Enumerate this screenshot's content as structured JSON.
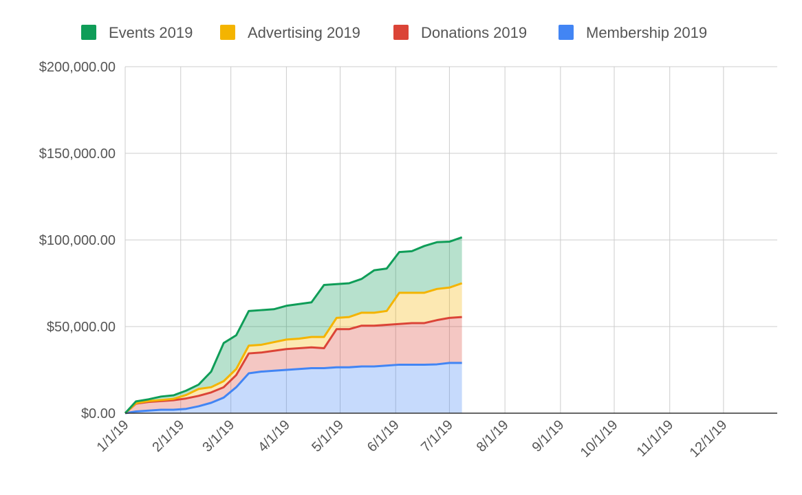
{
  "chart_data": {
    "type": "area",
    "stacked": true,
    "title": "",
    "xlabel": "",
    "ylabel": "",
    "ylim": [
      0,
      200000
    ],
    "xlim": [
      "2019-01-01",
      "2019-12-31"
    ],
    "grid": true,
    "legend_position": "top",
    "y_ticks": [
      {
        "value": 0,
        "label": "$0.00"
      },
      {
        "value": 50000,
        "label": "$50,000.00"
      },
      {
        "value": 100000,
        "label": "$100,000.00"
      },
      {
        "value": 150000,
        "label": "$150,000.00"
      },
      {
        "value": 200000,
        "label": "$200,000.00"
      }
    ],
    "x_ticks": [
      {
        "date": "2019-01-01",
        "label": "1/1/19"
      },
      {
        "date": "2019-02-01",
        "label": "2/1/19"
      },
      {
        "date": "2019-03-01",
        "label": "3/1/19"
      },
      {
        "date": "2019-04-01",
        "label": "4/1/19"
      },
      {
        "date": "2019-05-01",
        "label": "5/1/19"
      },
      {
        "date": "2019-06-01",
        "label": "6/1/19"
      },
      {
        "date": "2019-07-01",
        "label": "7/1/19"
      },
      {
        "date": "2019-08-01",
        "label": "8/1/19"
      },
      {
        "date": "2019-09-01",
        "label": "9/1/19"
      },
      {
        "date": "2019-10-01",
        "label": "10/1/19"
      },
      {
        "date": "2019-11-01",
        "label": "11/1/19"
      },
      {
        "date": "2019-12-01",
        "label": "12/1/19"
      }
    ],
    "x": [
      "2019-01-01",
      "2019-01-07",
      "2019-01-14",
      "2019-01-21",
      "2019-01-28",
      "2019-02-04",
      "2019-02-11",
      "2019-02-18",
      "2019-02-25",
      "2019-03-04",
      "2019-03-11",
      "2019-03-18",
      "2019-03-25",
      "2019-04-01",
      "2019-04-08",
      "2019-04-15",
      "2019-04-22",
      "2019-04-29",
      "2019-05-06",
      "2019-05-13",
      "2019-05-20",
      "2019-05-27",
      "2019-06-03",
      "2019-06-10",
      "2019-06-17",
      "2019-06-24",
      "2019-07-01",
      "2019-07-08"
    ],
    "series": [
      {
        "name": "Membership 2019",
        "color": "#4285f4",
        "values": [
          0,
          1000,
          1500,
          2000,
          2000,
          2500,
          4000,
          6000,
          9000,
          15000,
          23000,
          24000,
          24500,
          25000,
          25500,
          26000,
          26000,
          26500,
          26500,
          27000,
          27000,
          27500,
          28000,
          28000,
          28000,
          28200,
          29000,
          29000
        ]
      },
      {
        "name": "Donations 2019",
        "color": "#db4437",
        "values": [
          0,
          4500,
          5000,
          5000,
          5500,
          6000,
          6000,
          6000,
          6000,
          7000,
          11500,
          11000,
          11500,
          12000,
          12000,
          12000,
          11500,
          22000,
          22000,
          23500,
          23500,
          23500,
          23500,
          24000,
          24000,
          25500,
          26000,
          26500
        ]
      },
      {
        "name": "Advertising 2019",
        "color": "#f4b400",
        "values": [
          0,
          300,
          500,
          600,
          800,
          2000,
          4000,
          3000,
          3500,
          3500,
          4500,
          4500,
          5000,
          5500,
          5500,
          6000,
          6500,
          6500,
          7000,
          7500,
          7500,
          8000,
          18000,
          17500,
          17500,
          18000,
          17500,
          19500
        ]
      },
      {
        "name": "Events 2019",
        "color": "#0f9d58",
        "values": [
          0,
          1000,
          1000,
          2000,
          2000,
          2500,
          2500,
          9000,
          22000,
          19500,
          20000,
          20000,
          19000,
          19500,
          20000,
          20000,
          30000,
          19500,
          19500,
          19500,
          24500,
          24500,
          23500,
          24000,
          27000,
          27000,
          26500,
          26500
        ]
      }
    ]
  },
  "legend": {
    "items": [
      {
        "label": "Events 2019",
        "color": "#0f9d58"
      },
      {
        "label": "Advertising 2019",
        "color": "#f4b400"
      },
      {
        "label": "Donations 2019",
        "color": "#db4437"
      },
      {
        "label": "Membership 2019",
        "color": "#4285f4"
      }
    ]
  }
}
